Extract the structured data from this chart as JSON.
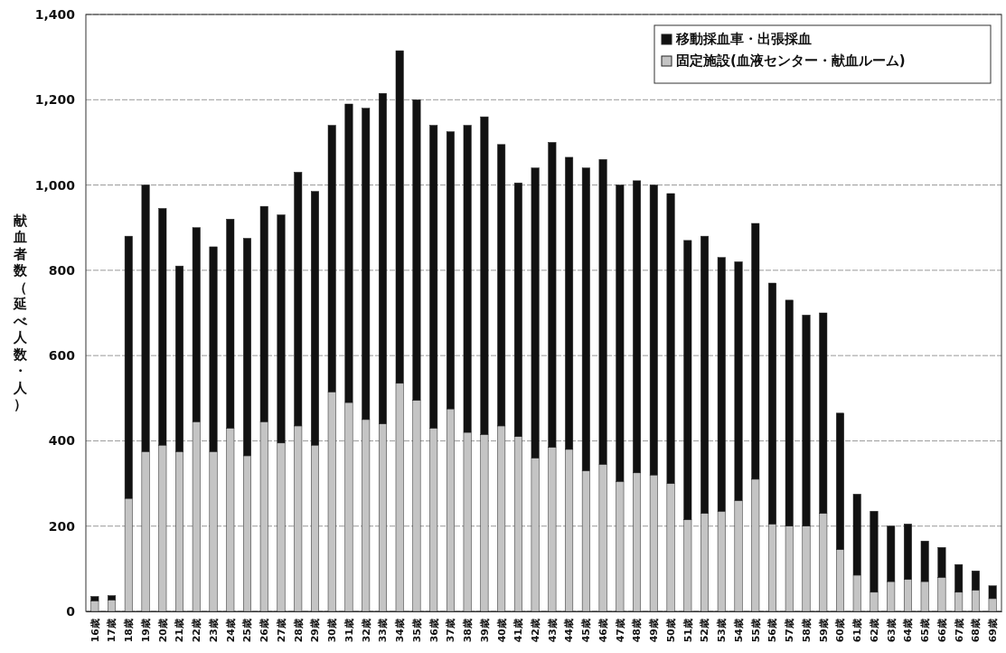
{
  "chart_data": {
    "type": "bar",
    "stacked": true,
    "ylabel": "献血者数（延べ人数・人）",
    "categories": [
      "16歳",
      "17歳",
      "18歳",
      "19歳",
      "20歳",
      "21歳",
      "22歳",
      "23歳",
      "24歳",
      "25歳",
      "26歳",
      "27歳",
      "28歳",
      "29歳",
      "30歳",
      "31歳",
      "32歳",
      "33歳",
      "34歳",
      "35歳",
      "36歳",
      "37歳",
      "38歳",
      "39歳",
      "40歳",
      "41歳",
      "42歳",
      "43歳",
      "44歳",
      "45歳",
      "46歳",
      "47歳",
      "48歳",
      "49歳",
      "50歳",
      "51歳",
      "52歳",
      "53歳",
      "54歳",
      "55歳",
      "56歳",
      "57歳",
      "58歳",
      "59歳",
      "60歳",
      "61歳",
      "62歳",
      "63歳",
      "64歳",
      "65歳",
      "66歳",
      "67歳",
      "68歳",
      "69歳"
    ],
    "series": [
      {
        "name": "固定施設(血液センター・献血ルーム)",
        "color": "#c4c4c4",
        "values": [
          25,
          27,
          265,
          375,
          390,
          375,
          445,
          375,
          430,
          365,
          445,
          395,
          435,
          390,
          515,
          490,
          450,
          440,
          535,
          495,
          430,
          475,
          420,
          415,
          435,
          410,
          360,
          385,
          380,
          330,
          345,
          305,
          325,
          320,
          300,
          215,
          230,
          235,
          260,
          310,
          205,
          200,
          200,
          230,
          145,
          85,
          45,
          70,
          75,
          70,
          80,
          45,
          50,
          30
        ]
      },
      {
        "name": "移動採血車・出張採血",
        "color": "#111111",
        "values": [
          10,
          10,
          615,
          625,
          555,
          435,
          455,
          480,
          490,
          510,
          505,
          535,
          595,
          595,
          625,
          700,
          730,
          775,
          780,
          705,
          710,
          650,
          720,
          745,
          660,
          595,
          680,
          715,
          685,
          710,
          715,
          695,
          685,
          680,
          680,
          655,
          650,
          595,
          560,
          600,
          565,
          530,
          495,
          470,
          320,
          190,
          190,
          130,
          130,
          95,
          70,
          65,
          45,
          30
        ]
      }
    ],
    "ylim": [
      0,
      1400
    ],
    "yticks": [
      0,
      {
        "value": 200,
        "label": "200"
      },
      {
        "value": 400,
        "label": "400"
      },
      {
        "value": 600,
        "label": "600"
      },
      {
        "value": 800,
        "label": "800"
      },
      {
        "value": 1000,
        "label": "1,000"
      },
      {
        "value": 1200,
        "label": "1,200"
      },
      {
        "value": 1400,
        "label": "1,400"
      }
    ],
    "grid": "y",
    "legend": "top right"
  }
}
